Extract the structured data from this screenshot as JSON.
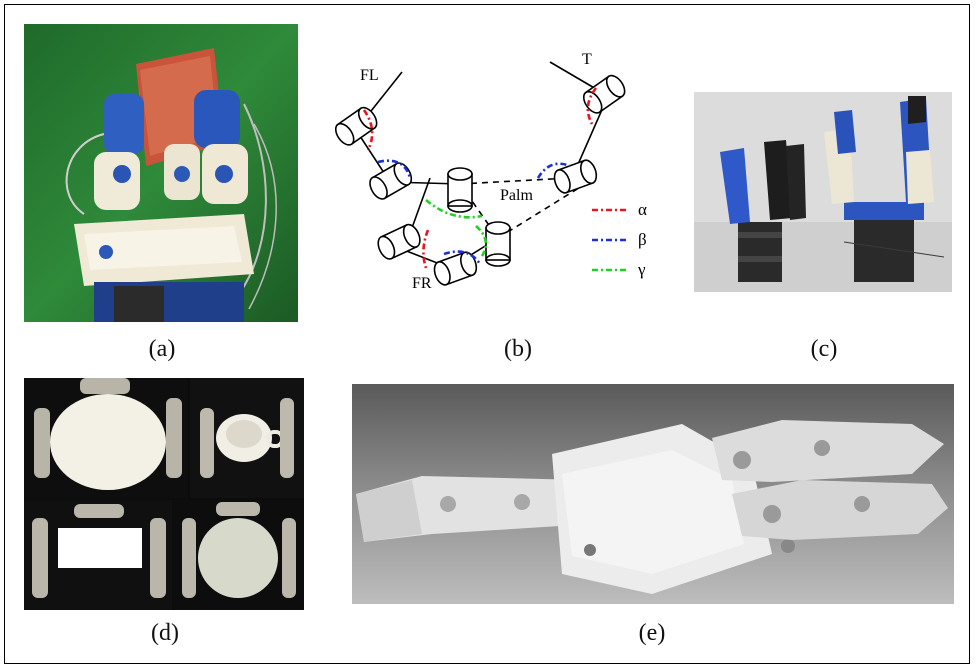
{
  "figure": {
    "captions": {
      "a": "(a)",
      "b": "(b)",
      "c": "(c)",
      "d": "(d)",
      "e": "(e)"
    },
    "diagram": {
      "labels": {
        "fl": "FL",
        "t": "T",
        "palm": "Palm",
        "fr": "FR"
      },
      "legend": [
        {
          "symbol": "α",
          "color": "#e8141e"
        },
        {
          "symbol": "β",
          "color": "#1a2fd6"
        },
        {
          "symbol": "γ",
          "color": "#22d022"
        }
      ]
    }
  }
}
